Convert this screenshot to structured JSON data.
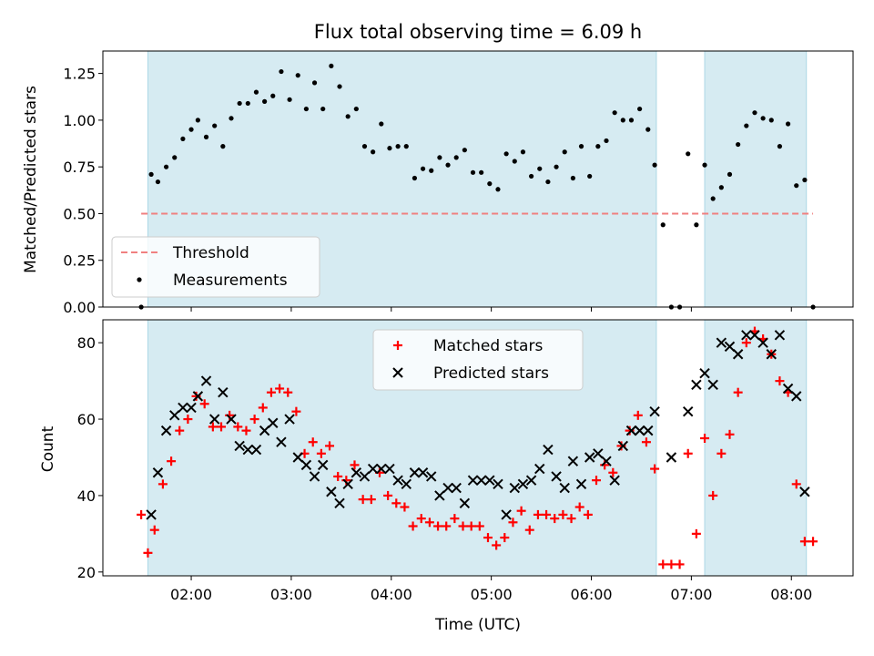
{
  "chart_data": [
    {
      "type": "scatter",
      "title": "Flux total observing time = 6.09 h",
      "xlabel": "",
      "ylabel": "Matched/Predicted stars",
      "ylim": [
        0,
        1.37
      ],
      "yticks": [
        "0.00",
        "0.25",
        "0.50",
        "0.75",
        "1.00",
        "1.25"
      ],
      "legend_position": "lower-left",
      "threshold": {
        "name": "Threshold",
        "value": 0.5,
        "x_start": "01:30",
        "x_end": "08:13",
        "color": "#f08080"
      },
      "shaded_intervals": [
        [
          "01:34",
          "06:39"
        ],
        [
          "07:08",
          "08:09"
        ]
      ],
      "series": [
        {
          "name": "Measurements",
          "color": "#000000",
          "x": [
            "01:30",
            "01:36",
            "01:40",
            "01:45",
            "01:50",
            "01:55",
            "02:00",
            "02:04",
            "02:09",
            "02:14",
            "02:19",
            "02:24",
            "02:29",
            "02:34",
            "02:39",
            "02:44",
            "02:49",
            "02:54",
            "02:59",
            "03:04",
            "03:09",
            "03:14",
            "03:19",
            "03:24",
            "03:29",
            "03:34",
            "03:39",
            "03:44",
            "03:49",
            "03:54",
            "03:59",
            "04:04",
            "04:09",
            "04:14",
            "04:19",
            "04:24",
            "04:29",
            "04:34",
            "04:39",
            "04:44",
            "04:49",
            "04:54",
            "04:59",
            "05:04",
            "05:09",
            "05:14",
            "05:19",
            "05:24",
            "05:29",
            "05:34",
            "05:39",
            "05:44",
            "05:49",
            "05:54",
            "05:59",
            "06:04",
            "06:09",
            "06:14",
            "06:19",
            "06:24",
            "06:29",
            "06:34",
            "06:38",
            "06:43",
            "06:48",
            "06:53",
            "06:58",
            "07:03",
            "07:08",
            "07:13",
            "07:18",
            "07:23",
            "07:28",
            "07:33",
            "07:38",
            "07:43",
            "07:48",
            "07:53",
            "07:58",
            "08:03",
            "08:08",
            "08:13"
          ],
          "y": [
            0.0,
            0.71,
            0.67,
            0.75,
            0.8,
            0.9,
            0.95,
            1.0,
            0.91,
            0.97,
            0.86,
            1.01,
            1.09,
            1.09,
            1.15,
            1.1,
            1.13,
            1.26,
            1.11,
            1.24,
            1.06,
            1.2,
            1.06,
            1.29,
            1.18,
            1.02,
            1.06,
            0.86,
            0.83,
            0.98,
            0.85,
            0.86,
            0.86,
            0.69,
            0.74,
            0.73,
            0.8,
            0.76,
            0.8,
            0.84,
            0.72,
            0.72,
            0.66,
            0.63,
            0.82,
            0.78,
            0.83,
            0.7,
            0.74,
            0.67,
            0.75,
            0.83,
            0.69,
            0.86,
            0.7,
            0.86,
            0.89,
            1.04,
            1.0,
            1.0,
            1.06,
            0.95,
            0.76,
            0.44,
            0.0,
            0.0,
            0.82,
            0.44,
            0.76,
            0.58,
            0.64,
            0.71,
            0.87,
            0.97,
            1.04,
            1.01,
            1.0,
            0.86,
            0.98,
            0.65,
            0.68,
            0.0
          ]
        }
      ]
    },
    {
      "type": "scatter",
      "title": "",
      "xlabel": "Time (UTC)",
      "ylabel": "Count",
      "ylim": [
        19,
        86
      ],
      "yticks": [
        "20",
        "40",
        "60",
        "80"
      ],
      "xticks": [
        "02:00",
        "03:00",
        "04:00",
        "05:00",
        "06:00",
        "07:00",
        "08:00"
      ],
      "xrange": [
        "01:07",
        "08:37"
      ],
      "legend_position": "upper-center",
      "shaded_intervals": [
        [
          "01:34",
          "06:39"
        ],
        [
          "07:08",
          "08:09"
        ]
      ],
      "series": [
        {
          "name": "Matched stars",
          "color": "#ff0000",
          "marker": "plus",
          "x": [
            "01:30",
            "01:34",
            "01:38",
            "01:43",
            "01:48",
            "01:53",
            "01:58",
            "02:03",
            "02:08",
            "02:13",
            "02:18",
            "02:23",
            "02:28",
            "02:33",
            "02:38",
            "02:43",
            "02:48",
            "02:53",
            "02:58",
            "03:03",
            "03:08",
            "03:13",
            "03:18",
            "03:23",
            "03:28",
            "03:33",
            "03:38",
            "03:43",
            "03:48",
            "03:53",
            "03:58",
            "04:03",
            "04:08",
            "04:13",
            "04:18",
            "04:23",
            "04:28",
            "04:33",
            "04:38",
            "04:43",
            "04:48",
            "04:53",
            "04:58",
            "05:03",
            "05:08",
            "05:13",
            "05:18",
            "05:23",
            "05:28",
            "05:33",
            "05:38",
            "05:43",
            "05:48",
            "05:53",
            "05:58",
            "06:03",
            "06:08",
            "06:13",
            "06:18",
            "06:23",
            "06:28",
            "06:33",
            "06:38",
            "06:43",
            "06:48",
            "06:53",
            "06:58",
            "07:03",
            "07:08",
            "07:13",
            "07:18",
            "07:23",
            "07:28",
            "07:33",
            "07:38",
            "07:43",
            "07:48",
            "07:53",
            "07:58",
            "08:03",
            "08:08",
            "08:13"
          ],
          "y": [
            35,
            25,
            31,
            43,
            49,
            57,
            60,
            66,
            64,
            58,
            58,
            61,
            58,
            57,
            60,
            63,
            67,
            68,
            67,
            62,
            51,
            54,
            51,
            53,
            45,
            44,
            48,
            39,
            39,
            46,
            40,
            38,
            37,
            32,
            34,
            33,
            32,
            32,
            34,
            32,
            32,
            32,
            29,
            27,
            29,
            33,
            36,
            31,
            35,
            35,
            34,
            35,
            34,
            37,
            35,
            44,
            48,
            46,
            53,
            57,
            61,
            54,
            47,
            22,
            22,
            22,
            51,
            30,
            55,
            40,
            51,
            56,
            67,
            80,
            83,
            81,
            77,
            70,
            67,
            43,
            28,
            28
          ]
        },
        {
          "name": "Predicted stars",
          "color": "#000000",
          "marker": "x",
          "x": [
            "01:36",
            "01:40",
            "01:45",
            "01:50",
            "01:55",
            "02:00",
            "02:04",
            "02:09",
            "02:14",
            "02:19",
            "02:24",
            "02:29",
            "02:34",
            "02:39",
            "02:44",
            "02:49",
            "02:54",
            "02:59",
            "03:04",
            "03:09",
            "03:14",
            "03:19",
            "03:24",
            "03:29",
            "03:34",
            "03:39",
            "03:44",
            "03:49",
            "03:54",
            "03:59",
            "04:04",
            "04:09",
            "04:14",
            "04:19",
            "04:24",
            "04:29",
            "04:34",
            "04:39",
            "04:44",
            "04:49",
            "04:54",
            "04:59",
            "05:04",
            "05:09",
            "05:14",
            "05:19",
            "05:24",
            "05:29",
            "05:34",
            "05:39",
            "05:44",
            "05:49",
            "05:54",
            "05:59",
            "06:04",
            "06:09",
            "06:14",
            "06:19",
            "06:24",
            "06:29",
            "06:34",
            "06:38",
            "06:48",
            "06:58",
            "07:03",
            "07:08",
            "07:13",
            "07:18",
            "07:23",
            "07:28",
            "07:33",
            "07:38",
            "07:43",
            "07:48",
            "07:53",
            "07:58",
            "08:03",
            "08:08"
          ],
          "y": [
            35,
            46,
            57,
            61,
            63,
            63,
            66,
            70,
            60,
            67,
            60,
            53,
            52,
            52,
            57,
            59,
            54,
            60,
            50,
            48,
            45,
            48,
            41,
            38,
            43,
            46,
            45,
            47,
            47,
            47,
            44,
            43,
            46,
            46,
            45,
            40,
            42,
            42,
            38,
            44,
            44,
            44,
            43,
            35,
            42,
            43,
            44,
            47,
            52,
            45,
            42,
            49,
            43,
            50,
            51,
            49,
            44,
            53,
            57,
            57,
            57,
            62,
            50,
            62,
            69,
            72,
            69,
            80,
            79,
            77,
            82,
            82,
            80,
            77,
            82,
            68,
            66,
            41
          ]
        }
      ]
    }
  ]
}
